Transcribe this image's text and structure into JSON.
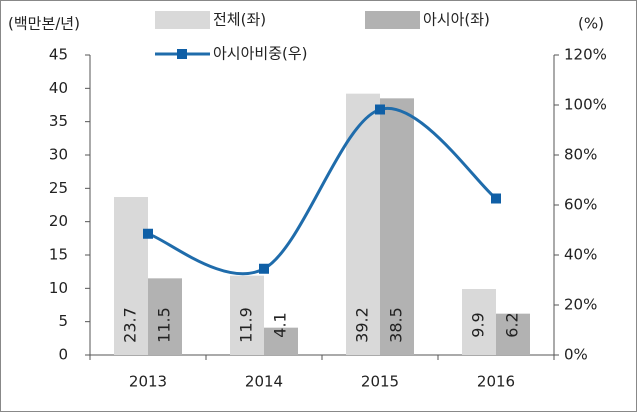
{
  "chart_data": {
    "type": "bar",
    "y_label": "(백만본/년)",
    "y2_label": "(%)",
    "categories": [
      "2013",
      "2014",
      "2015",
      "2016"
    ],
    "series": [
      {
        "name": "전체(좌)",
        "color": "#d9d9d9",
        "values": [
          23.7,
          11.9,
          39.2,
          9.9
        ]
      },
      {
        "name": "아시아(좌)",
        "color": "#b2b2b2",
        "values": [
          11.5,
          4.1,
          38.5,
          6.2
        ]
      },
      {
        "name": "아시아비중(우)",
        "color": "#1f6cab",
        "type": "line",
        "axis": "y2",
        "values": [
          48.5,
          34.5,
          98.2,
          62.6
        ]
      }
    ],
    "ylim": [
      0,
      45
    ],
    "yticks": [
      0,
      5,
      10,
      15,
      20,
      25,
      30,
      35,
      40,
      45
    ],
    "y2lim": [
      0,
      120
    ],
    "y2ticks": [
      {
        "value": 0,
        "label": "0%"
      },
      {
        "value": 20,
        "label": "20%"
      },
      {
        "value": 40,
        "label": "40%"
      },
      {
        "value": 60,
        "label": "60%"
      },
      {
        "value": 80,
        "label": "80%"
      },
      {
        "value": 100,
        "label": "100%"
      },
      {
        "value": 120,
        "label": "120%"
      }
    ]
  }
}
